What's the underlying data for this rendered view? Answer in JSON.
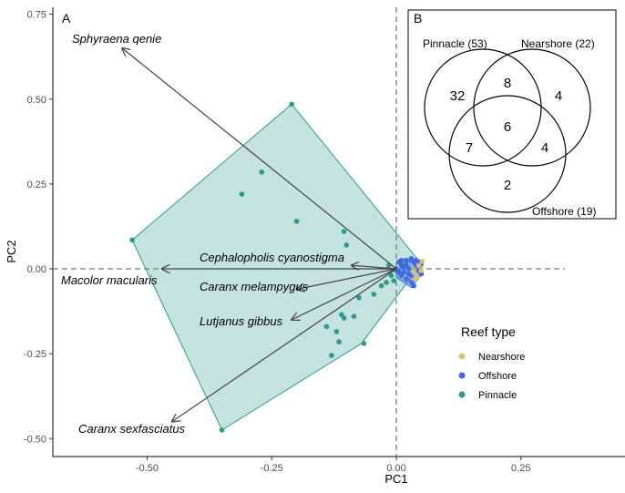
{
  "chart_data": {
    "type": "scatter",
    "panel_a_label": "A",
    "panel_b_label": "B",
    "xlabel": "PC1",
    "ylabel": "PC2",
    "xlim": [
      -0.7,
      0.46
    ],
    "ylim": [
      -0.555,
      0.77
    ],
    "x_ticks": [
      {
        "value": -0.5,
        "label": "-0.50"
      },
      {
        "value": -0.25,
        "label": "-0.25"
      },
      {
        "value": 0.0,
        "label": "0.00"
      },
      {
        "value": 0.25,
        "label": "0.25"
      }
    ],
    "y_ticks": [
      {
        "value": -0.5,
        "label": "-0.50"
      },
      {
        "value": -0.25,
        "label": "-0.25"
      },
      {
        "value": 0.0,
        "label": "0.00"
      },
      {
        "value": 0.25,
        "label": "0.25"
      },
      {
        "value": 0.5,
        "label": "0.50"
      },
      {
        "value": 0.75,
        "label": "0.75"
      }
    ],
    "reference_lines": {
      "x": 0.0,
      "y": 0.0,
      "style": "dashed"
    },
    "loadings": [
      {
        "name": "Sphyraena qenie",
        "x": -0.55,
        "y": 0.65
      },
      {
        "name": "Cephalopholis cyanostigma",
        "x": -0.09,
        "y": 0.01
      },
      {
        "name": "Macolor macularis",
        "x": -0.47,
        "y": 0.0
      },
      {
        "name": "Caranx melampygus",
        "x": -0.2,
        "y": -0.06
      },
      {
        "name": "Lutjanus gibbus",
        "x": -0.21,
        "y": -0.15
      },
      {
        "name": "Caranx sexfasciatus",
        "x": -0.45,
        "y": -0.45
      }
    ],
    "legend": {
      "title": "Reef type",
      "entries": [
        {
          "name": "Nearshore",
          "color": "#d9bf77"
        },
        {
          "name": "Offshore",
          "color": "#4169e1"
        },
        {
          "name": "Pinnacle",
          "color": "#2b9a8c"
        }
      ]
    },
    "hulls": {
      "Pinnacle": {
        "fill": "#2b9a8c",
        "x": [
          -0.53,
          -0.21,
          0.05,
          -0.07,
          -0.35
        ],
        "y": [
          0.085,
          0.485,
          0.015,
          -0.22,
          -0.475
        ]
      },
      "Offshore": {
        "fill": "#4169e1",
        "x": [
          0.0,
          0.03,
          0.05,
          0.05,
          0.03,
          0.0
        ],
        "y": [
          -0.01,
          0.03,
          0.025,
          -0.02,
          -0.055,
          -0.025
        ]
      },
      "Nearshore": {
        "fill": "#d9bf77",
        "x": [
          0.025,
          0.052,
          0.054,
          0.04
        ],
        "y": [
          -0.005,
          0.024,
          -0.01,
          -0.04
        ]
      }
    },
    "series": [
      {
        "name": "Pinnacle",
        "color": "#2b9a8c",
        "x": [
          -0.53,
          -0.21,
          -0.35,
          -0.27,
          -0.31,
          -0.2,
          -0.105,
          -0.1,
          -0.105,
          -0.12,
          -0.115,
          -0.13,
          -0.11,
          -0.14,
          -0.085,
          -0.065,
          -0.075,
          -0.045,
          -0.03,
          -0.02,
          -0.01,
          0.0,
          -0.015,
          0.01,
          0.02,
          0.03,
          0.04,
          0.045,
          -0.005
        ],
        "y": [
          0.085,
          0.485,
          -0.475,
          0.285,
          0.22,
          0.14,
          0.11,
          0.07,
          -0.145,
          -0.185,
          -0.215,
          -0.255,
          -0.135,
          -0.17,
          -0.14,
          -0.22,
          -0.085,
          -0.075,
          -0.05,
          -0.04,
          -0.02,
          -0.005,
          0.01,
          0.015,
          0.02,
          0.025,
          0.015,
          0.005,
          -0.035
        ]
      },
      {
        "name": "Offshore",
        "color": "#4169e1",
        "x": [
          0.0,
          0.005,
          0.01,
          0.015,
          0.02,
          0.025,
          0.03,
          0.035,
          0.04,
          0.045,
          0.05,
          0.01,
          0.02,
          0.03,
          0.04,
          0.035,
          0.025,
          0.015,
          0.045,
          0.005,
          0.02,
          0.03,
          0.04,
          0.01,
          0.05
        ],
        "y": [
          0.0,
          0.02,
          0.01,
          -0.01,
          0.025,
          0.0,
          0.03,
          0.02,
          0.01,
          -0.005,
          0.015,
          -0.02,
          -0.03,
          -0.04,
          -0.03,
          -0.05,
          -0.015,
          0.005,
          0.02,
          -0.01,
          0.01,
          -0.02,
          0.025,
          0.025,
          -0.015
        ]
      },
      {
        "name": "Nearshore",
        "color": "#d9bf77",
        "x": [
          0.052,
          0.045,
          0.04,
          0.035,
          0.05
        ],
        "y": [
          0.022,
          0.01,
          -0.03,
          -0.01,
          -0.005
        ]
      }
    ],
    "venn": {
      "sets": [
        {
          "label": "Pinnacle (53)"
        },
        {
          "label": "Nearshore (22)"
        },
        {
          "label": "Offshore (19)"
        }
      ],
      "regions": {
        "pinnacle_only": "32",
        "pinnacle_nearshore": "8",
        "nearshore_only": "4",
        "all_three": "6",
        "pinnacle_offshore": "7",
        "nearshore_offshore": "4",
        "offshore_only": "2"
      }
    }
  }
}
